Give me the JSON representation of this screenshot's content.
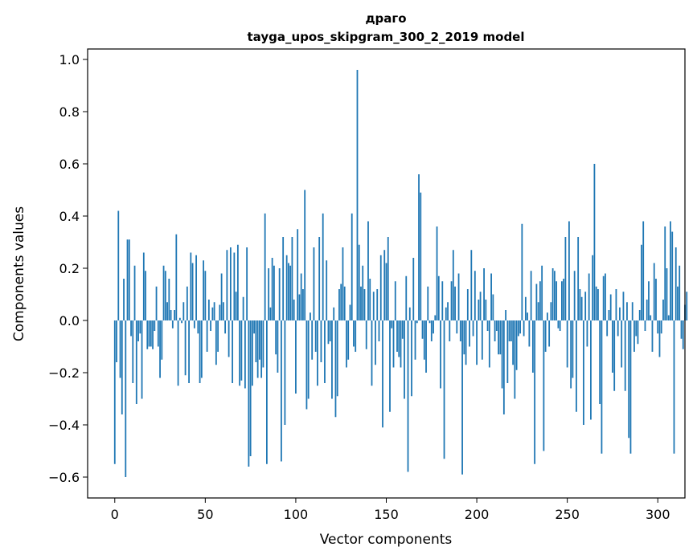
{
  "chart_data": {
    "type": "bar",
    "title": "драго",
    "subtitle": "tayga_upos_skipgram_300_2_2019 model",
    "xlabel": "Vector components",
    "ylabel": "Components values",
    "xlim": [
      -15,
      315
    ],
    "ylim": [
      -0.68,
      1.04
    ],
    "xticks": [
      0,
      50,
      100,
      150,
      200,
      250,
      300
    ],
    "xtick_labels": [
      "0",
      "50",
      "100",
      "150",
      "200",
      "250",
      "300"
    ],
    "yticks": [
      -0.6,
      -0.4,
      -0.2,
      0.0,
      0.2,
      0.4,
      0.6,
      0.8,
      1.0
    ],
    "ytick_labels": [
      "−0.6",
      "−0.4",
      "−0.2",
      "0.0",
      "0.2",
      "0.4",
      "0.6",
      "0.8",
      "1.0"
    ],
    "grid": false,
    "legend": "none",
    "bar_color": "#1f77b4",
    "values": [
      -0.55,
      -0.16,
      0.42,
      -0.22,
      -0.36,
      0.16,
      -0.6,
      0.31,
      0.31,
      -0.06,
      -0.24,
      0.21,
      -0.32,
      -0.08,
      -0.05,
      -0.3,
      0.26,
      0.19,
      -0.11,
      -0.1,
      -0.1,
      -0.11,
      -0.04,
      0.13,
      -0.1,
      -0.22,
      -0.15,
      0.21,
      0.19,
      0.07,
      0.16,
      0.04,
      -0.03,
      0.04,
      0.33,
      -0.25,
      0.01,
      -0.01,
      0.07,
      -0.21,
      0.13,
      -0.24,
      0.26,
      0.22,
      -0.03,
      0.25,
      -0.05,
      -0.24,
      -0.22,
      0.23,
      0.19,
      -0.12,
      0.08,
      -0.04,
      0.05,
      0.07,
      -0.17,
      -0.12,
      0.06,
      0.18,
      0.07,
      -0.05,
      0.27,
      -0.14,
      0.28,
      -0.24,
      0.26,
      0.11,
      0.29,
      -0.25,
      -0.23,
      0.09,
      -0.26,
      0.28,
      -0.56,
      -0.52,
      -0.25,
      -0.05,
      -0.16,
      -0.22,
      -0.15,
      -0.22,
      -0.18,
      0.41,
      -0.55,
      0.2,
      0.05,
      0.24,
      0.21,
      -0.13,
      -0.2,
      0.2,
      -0.54,
      0.32,
      -0.4,
      0.25,
      0.22,
      0.21,
      0.32,
      0.08,
      -0.28,
      0.35,
      0.1,
      0.18,
      0.12,
      0.5,
      -0.34,
      -0.3,
      0.03,
      -0.15,
      0.28,
      -0.12,
      -0.25,
      0.32,
      -0.16,
      0.41,
      -0.24,
      0.23,
      -0.09,
      -0.08,
      -0.3,
      0.05,
      -0.37,
      -0.29,
      0.12,
      0.14,
      0.28,
      0.13,
      -0.18,
      -0.15,
      0.06,
      0.41,
      -0.1,
      -0.12,
      0.96,
      0.29,
      0.13,
      0.21,
      0.12,
      -0.11,
      0.38,
      0.16,
      -0.25,
      0.11,
      -0.17,
      0.12,
      -0.08,
      0.25,
      -0.41,
      0.27,
      0.22,
      0.32,
      -0.35,
      -0.03,
      -0.18,
      0.15,
      -0.12,
      -0.14,
      -0.18,
      -0.07,
      -0.3,
      0.17,
      -0.58,
      0.05,
      -0.29,
      0.24,
      -0.15,
      -0.01,
      0.56,
      0.49,
      -0.07,
      -0.15,
      -0.2,
      0.13,
      -0.01,
      -0.08,
      -0.05,
      0.02,
      0.36,
      0.17,
      -0.26,
      0.15,
      -0.53,
      0.05,
      0.07,
      -0.08,
      0.15,
      0.27,
      0.13,
      -0.05,
      0.18,
      -0.08,
      -0.59,
      -0.13,
      -0.17,
      0.12,
      -0.1,
      0.27,
      -0.06,
      0.19,
      -0.17,
      0.08,
      0.11,
      -0.15,
      0.2,
      0.08,
      -0.04,
      -0.18,
      0.18,
      0.1,
      -0.08,
      -0.04,
      -0.13,
      -0.13,
      -0.26,
      -0.36,
      0.04,
      -0.24,
      -0.08,
      -0.08,
      -0.17,
      -0.3,
      -0.19,
      -0.06,
      -0.05,
      0.37,
      -0.06,
      0.09,
      0.03,
      -0.1,
      0.19,
      -0.2,
      -0.55,
      0.14,
      0.07,
      0.15,
      0.21,
      -0.5,
      -0.12,
      0.03,
      -0.1,
      0.07,
      0.2,
      0.19,
      0.15,
      -0.03,
      -0.04,
      0.15,
      0.16,
      0.32,
      -0.18,
      0.38,
      -0.26,
      -0.22,
      0.19,
      -0.35,
      0.32,
      0.12,
      0.09,
      -0.4,
      0.11,
      -0.1,
      0.18,
      -0.38,
      0.25,
      0.6,
      0.13,
      0.12,
      -0.32,
      -0.51,
      0.17,
      0.18,
      -0.06,
      0.04,
      0.1,
      -0.2,
      -0.27,
      0.12,
      -0.06,
      0.05,
      -0.18,
      0.11,
      -0.27,
      0.07,
      -0.45,
      -0.51,
      0.07,
      -0.12,
      -0.06,
      -0.09,
      0.04,
      0.29,
      0.38,
      -0.04,
      0.08,
      0.15,
      0.02,
      -0.12,
      0.22,
      0.16,
      -0.05,
      -0.14,
      -0.05,
      0.08,
      0.36,
      0.2,
      0.02,
      0.38,
      0.34,
      -0.51,
      0.28,
      0.13,
      0.21,
      -0.07,
      -0.11,
      0.06,
      0.11
    ]
  }
}
